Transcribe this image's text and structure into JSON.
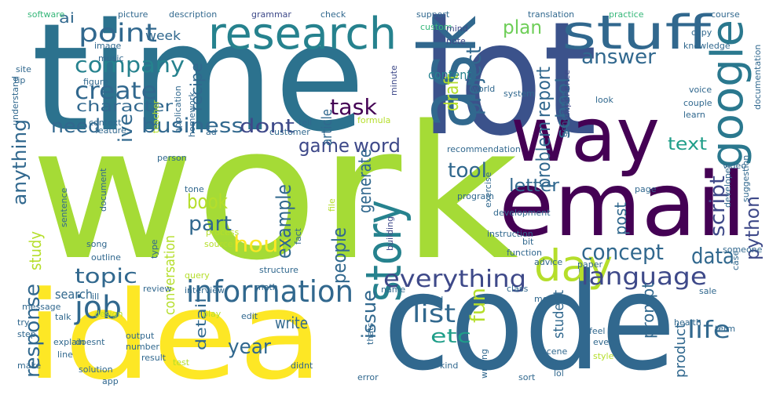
{
  "words": [
    "time",
    "work",
    "lot",
    "code",
    "idea",
    "email",
    "way",
    "ask",
    "research",
    "stuff",
    "google",
    "story",
    "day",
    "information",
    "everything",
    "language",
    "point",
    "company",
    "create",
    "character",
    "business",
    "need",
    "dont",
    "game",
    "word",
    "task",
    "book",
    "part",
    "topic",
    "job",
    "hour",
    "year",
    "list",
    "etc",
    "concept",
    "data",
    "life",
    "answer",
    "text",
    "tool",
    "letter",
    "report",
    "problem",
    "example",
    "anything",
    "response",
    "study",
    "people",
    "generate",
    "project",
    "draft",
    "fun",
    "script",
    "python",
    "school",
    "post",
    "prompt",
    "issue",
    "detail",
    "write",
    "search",
    "conversation",
    "plan",
    "recipe",
    "week",
    "ai",
    "ive",
    "student",
    "article",
    "content",
    "product",
    "software",
    "picture",
    "description",
    "grammar",
    "check",
    "support",
    "custom",
    "translation",
    "practice",
    "course",
    "image",
    "music",
    "mind",
    "note",
    "copy",
    "knowledge",
    "site",
    "tip",
    "figure",
    "application",
    "minute",
    "world",
    "generation",
    "voice",
    "couple",
    "learn",
    "documentation",
    "understand",
    "homework",
    "context",
    "teacher",
    "ad",
    "look",
    "system",
    "experience",
    "customer",
    "tell",
    "formula",
    "feature",
    "person",
    "video",
    "developer",
    "suggestion",
    "tone",
    "sentence",
    "document",
    "exercise",
    "recommendation",
    "program",
    "file",
    "building",
    "development",
    "page",
    "process",
    "source",
    "song",
    "fact",
    "instruction",
    "bit",
    "someone",
    "function",
    "advice",
    "paper",
    "outline",
    "type",
    "query",
    "structure",
    "case",
    "ill",
    "interview",
    "math",
    "class",
    "movie",
    "sale",
    "message",
    "try",
    "design",
    "review",
    "talk",
    "play",
    "explain",
    "number",
    "output",
    "edit",
    "name",
    "model",
    "feel",
    "health",
    "term",
    "step",
    "make",
    "doesnt",
    "result",
    "thats",
    "writing",
    "scene",
    "event",
    "style",
    "line",
    "solution",
    "test",
    "didnt",
    "error",
    "lol",
    "month",
    "app",
    "sort",
    "kind"
  ]
}
